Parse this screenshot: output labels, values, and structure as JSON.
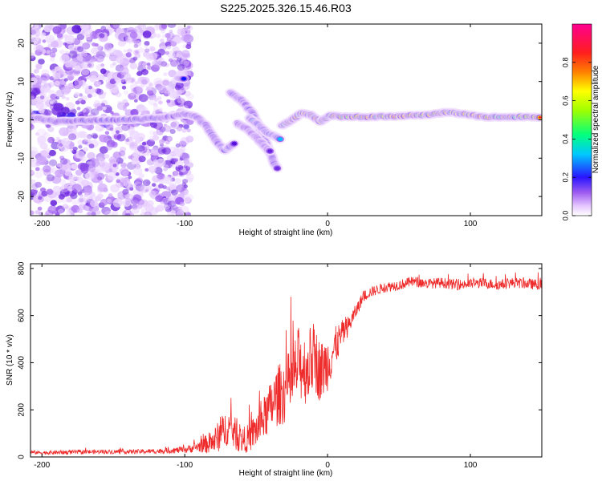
{
  "figure": {
    "title": "S225.2025.326.15.46.R03"
  },
  "chart_data": [
    {
      "type": "heatmap",
      "name": "spectrogram",
      "xlabel": "Height of straight line (km)",
      "ylabel": "Frequency (Hz)",
      "xlim": [
        -208,
        150
      ],
      "ylim": [
        -25,
        25
      ],
      "x_ticks": [
        -200,
        -100,
        0,
        100
      ],
      "x_tick_labels": [
        "-200",
        "-100",
        "0",
        "100"
      ],
      "y_ticks": [
        -20,
        -10,
        0,
        10,
        20
      ],
      "y_tick_labels": [
        "-20",
        "-10",
        "0",
        "10",
        "20"
      ],
      "colorbar": {
        "label": "Normalized spectral amplitude",
        "range": [
          0,
          1
        ],
        "ticks": [
          0.0,
          0.2,
          0.4,
          0.6,
          0.8
        ],
        "tick_labels": [
          "0.0",
          "0.2",
          "0.4",
          "0.6",
          "0.8"
        ],
        "colors": [
          "#ffffff",
          "#e6c8ff",
          "#9e5cf0",
          "#5a12d8",
          "#1414ff",
          "#00c8ff",
          "#00ff80",
          "#a0ff00",
          "#ffff00",
          "#ff8000",
          "#ff1e1e",
          "#ff0090"
        ]
      },
      "noise_region_x": [
        -208,
        -96
      ],
      "ridges": [
        {
          "name": "main-ridge",
          "points": [
            [
              -205,
              0.5
            ],
            [
              -190,
              -0.5
            ],
            [
              -170,
              -0.2
            ],
            [
              -150,
              -0.1
            ],
            [
              -130,
              0.2
            ],
            [
              -115,
              0.5
            ],
            [
              -100,
              1.5
            ],
            [
              -92,
              0.8
            ],
            [
              -85,
              -1.5
            ],
            [
              -78,
              -5.5
            ],
            [
              -72,
              -8
            ],
            [
              -65,
              -6
            ]
          ],
          "amplitude": 0.42
        },
        {
          "name": "branch-upper",
          "points": [
            [
              -105,
              11
            ],
            [
              -100,
              10.5
            ]
          ],
          "amplitude": 0.45
        },
        {
          "name": "branch-descending",
          "points": [
            [
              -68,
              7
            ],
            [
              -60,
              5
            ],
            [
              -53,
              2
            ],
            [
              -47,
              -2.5
            ],
            [
              -43,
              -6
            ],
            [
              -37,
              -11.5
            ],
            [
              -35,
              -13
            ]
          ],
          "amplitude": 0.4
        },
        {
          "name": "branch-second",
          "points": [
            [
              -63,
              -1
            ],
            [
              -56,
              -2.5
            ],
            [
              -50,
              -4.5
            ],
            [
              -45,
              -6.5
            ],
            [
              -40,
              -8.5
            ]
          ],
          "amplitude": 0.3
        },
        {
          "name": "branch-third",
          "points": [
            [
              -55,
              0.5
            ],
            [
              -48,
              -1.5
            ],
            [
              -42,
              -3.5
            ],
            [
              -36,
              -4.5
            ],
            [
              -33,
              -5
            ]
          ],
          "amplitude": 0.5
        },
        {
          "name": "stable-ridge",
          "points": [
            [
              -32,
              -1.5
            ],
            [
              -25,
              0
            ],
            [
              -18,
              1.8
            ],
            [
              -12,
              1.3
            ],
            [
              -5,
              -0.5
            ],
            [
              2,
              1.2
            ],
            [
              10,
              0.8
            ],
            [
              30,
              0.8
            ],
            [
              50,
              1
            ],
            [
              70,
              1.3
            ],
            [
              85,
              2
            ],
            [
              95,
              1.5
            ],
            [
              110,
              0.7
            ],
            [
              130,
              0.8
            ],
            [
              150,
              0.7
            ]
          ],
          "amplitude": 0.85
        }
      ]
    },
    {
      "type": "line",
      "name": "snr",
      "xlabel": "Height of straight line (km)",
      "ylabel": "SNR (10 * v/v)",
      "xlim": [
        -208,
        150
      ],
      "ylim": [
        0,
        820
      ],
      "x_ticks": [
        -200,
        -100,
        0,
        100
      ],
      "x_tick_labels": [
        "-200",
        "-100",
        "0",
        "100"
      ],
      "y_ticks": [
        0,
        200,
        400,
        600,
        800
      ],
      "y_tick_labels": [
        "0",
        "200",
        "400",
        "600",
        "800"
      ],
      "series": [
        {
          "name": "SNR",
          "color": "#ee2a2a",
          "x": [
            -208,
            -200,
            -180,
            -160,
            -140,
            -120,
            -100,
            -90,
            -80,
            -75,
            -70,
            -65,
            -60,
            -55,
            -50,
            -45,
            -40,
            -35,
            -30,
            -25,
            -20,
            -15,
            -10,
            -5,
            0,
            5,
            10,
            15,
            20,
            25,
            30,
            40,
            50,
            60,
            70,
            80,
            90,
            100,
            110,
            120,
            130,
            140,
            150
          ],
          "y": [
            20,
            18,
            20,
            22,
            22,
            24,
            30,
            45,
            65,
            95,
            130,
            100,
            70,
            80,
            115,
            160,
            210,
            260,
            280,
            320,
            400,
            370,
            430,
            360,
            400,
            460,
            520,
            560,
            620,
            680,
            700,
            720,
            730,
            745,
            735,
            740,
            730,
            735,
            738,
            730,
            740,
            735,
            730
          ],
          "noise": [
            8,
            8,
            9,
            9,
            9,
            10,
            14,
            25,
            55,
            70,
            80,
            70,
            55,
            60,
            80,
            90,
            110,
            130,
            140,
            150,
            160,
            150,
            150,
            130,
            120,
            90,
            60,
            40,
            30,
            25,
            22,
            22,
            22,
            22,
            22,
            22,
            22,
            22,
            22,
            22,
            22,
            22,
            22
          ]
        }
      ]
    }
  ]
}
